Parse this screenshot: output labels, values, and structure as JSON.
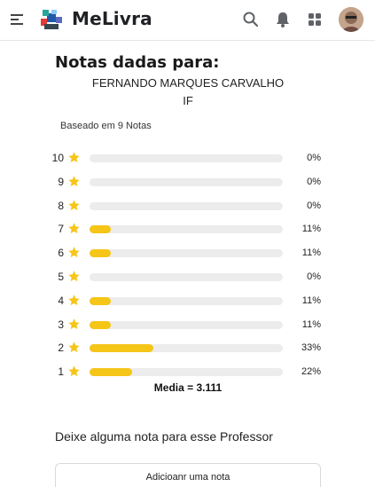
{
  "header": {
    "app_name": "MeLivra",
    "icons": [
      "menu-icon",
      "melivra-logo",
      "search-icon",
      "bell-icon",
      "apps-grid-icon",
      "avatar"
    ]
  },
  "main": {
    "title": "Notas dadas para:",
    "professor_name": "FERNANDO MARQUES CARVALHO",
    "institution": "IF",
    "based_on": "Baseado em 9 Notas",
    "ratings": [
      {
        "score": "10",
        "percent_label": "0%",
        "fraction": 0.0
      },
      {
        "score": "9",
        "percent_label": "0%",
        "fraction": 0.0
      },
      {
        "score": "8",
        "percent_label": "0%",
        "fraction": 0.0
      },
      {
        "score": "7",
        "percent_label": "11%",
        "fraction": 0.11
      },
      {
        "score": "6",
        "percent_label": "11%",
        "fraction": 0.11
      },
      {
        "score": "5",
        "percent_label": "0%",
        "fraction": 0.0
      },
      {
        "score": "4",
        "percent_label": "11%",
        "fraction": 0.11
      },
      {
        "score": "3",
        "percent_label": "11%",
        "fraction": 0.11
      },
      {
        "score": "2",
        "percent_label": "33%",
        "fraction": 0.33
      },
      {
        "score": "1",
        "percent_label": "22%",
        "fraction": 0.22
      }
    ],
    "average": "Media = 3.111",
    "prompt": "Deixe alguma nota para esse Professor",
    "add_button_label": "Adicioanr uma nota"
  },
  "colors": {
    "star": "#f5c518",
    "bar_fill": "#f5c518",
    "bar_track": "#ececec"
  }
}
